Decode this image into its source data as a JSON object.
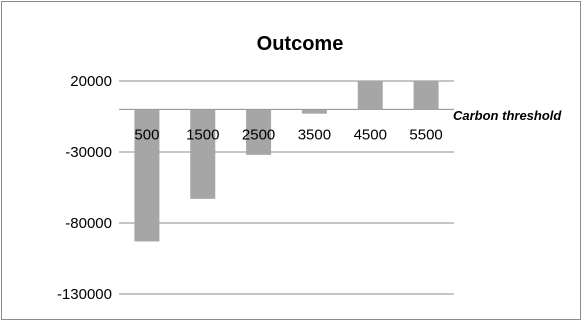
{
  "chart_data": {
    "type": "bar",
    "title": "Outcome",
    "xlabel": "Carbon threshold",
    "ylabel": "",
    "categories": [
      "500",
      "1500",
      "2500",
      "3500",
      "4500",
      "5500"
    ],
    "values": [
      -93000,
      -63000,
      -32000,
      -3000,
      20000,
      20000
    ],
    "yticks": [
      "20000",
      "-30000",
      "-80000",
      "-130000"
    ],
    "ytick_values": [
      20000,
      -30000,
      -80000,
      -130000
    ],
    "ylim": [
      -130000,
      20000
    ],
    "grid": true,
    "legend": "none",
    "bar_color": "#a6a6a6",
    "grid_color": "#8c8c8c"
  }
}
